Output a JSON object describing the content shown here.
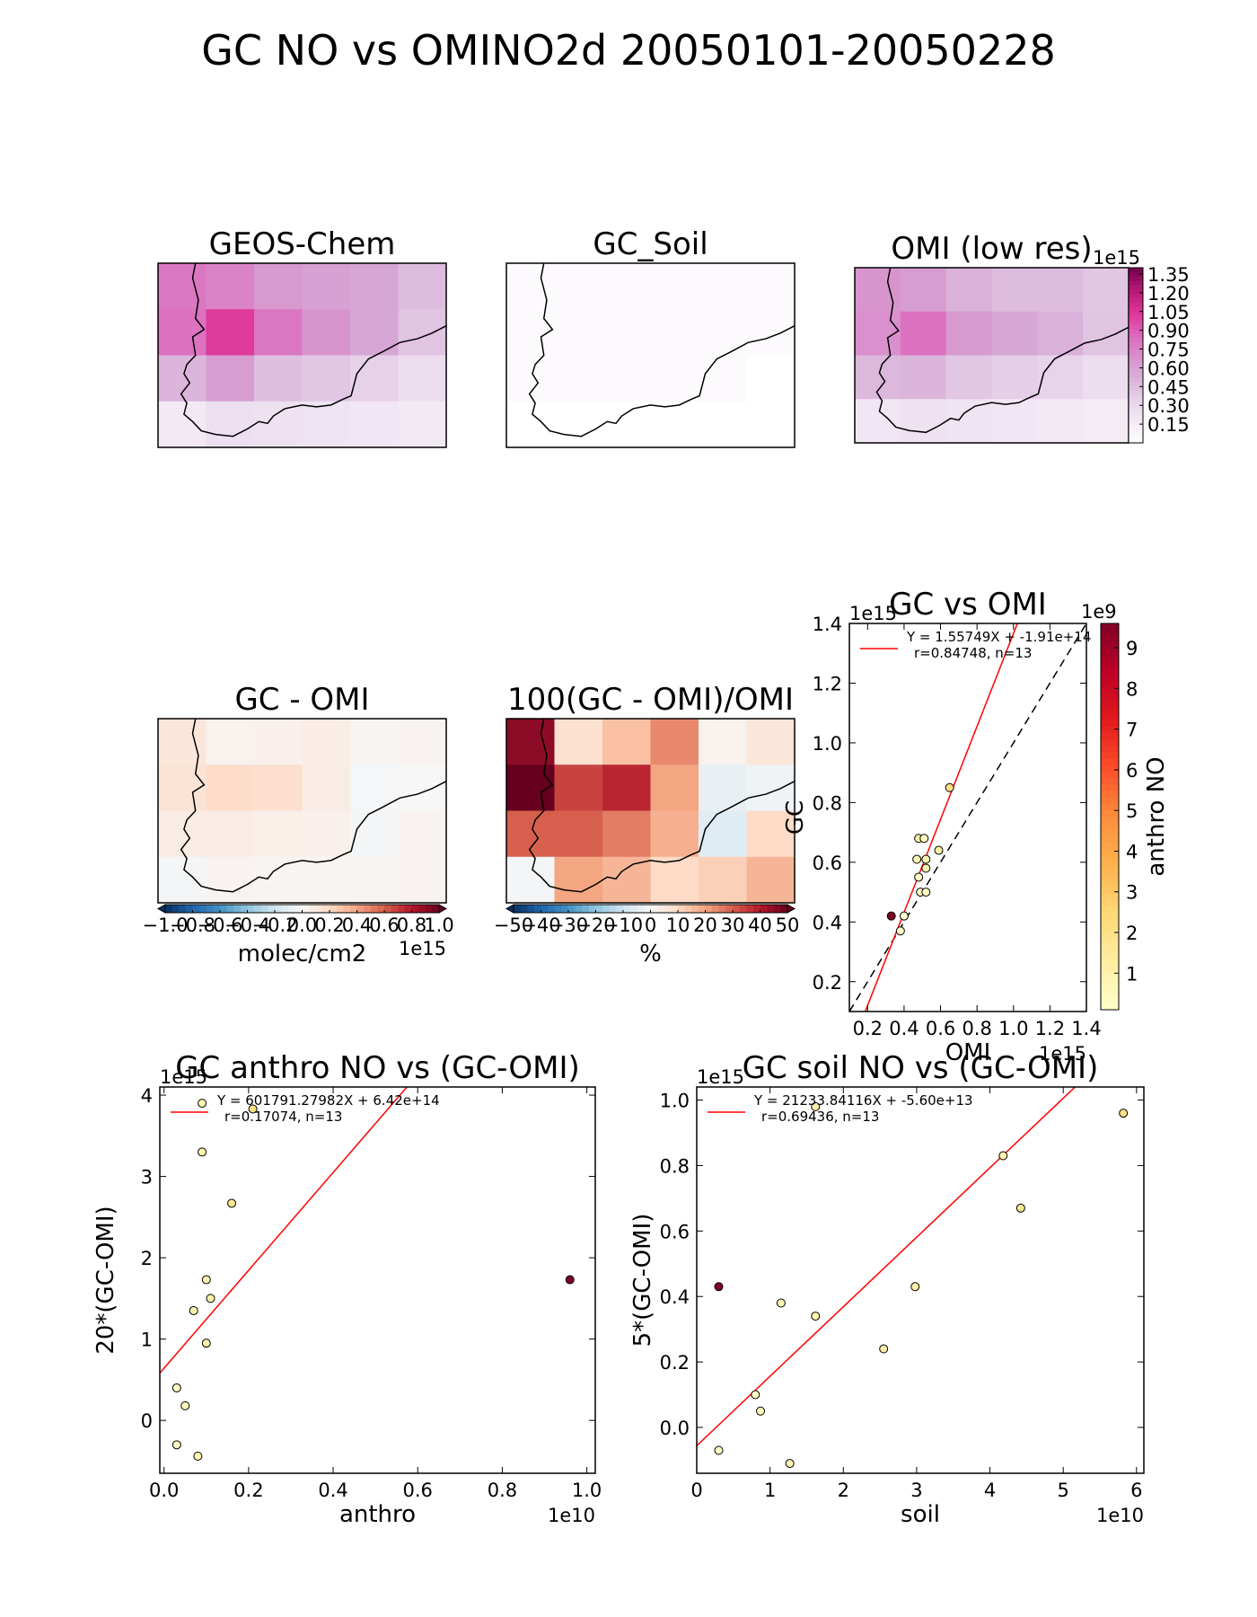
{
  "figure": {
    "title": "GC NO vs OMINO2d 20050101-20050228"
  },
  "maps": [
    {
      "title": "GEOS-Chem",
      "colormap": "RdPu",
      "vmin": 0,
      "vmax": 1.4,
      "grid": [
        [
          0.8,
          0.74,
          0.64,
          0.6,
          0.58,
          0.46
        ],
        [
          0.82,
          1.02,
          0.8,
          0.66,
          0.58,
          0.42
        ],
        [
          0.5,
          0.62,
          0.44,
          0.4,
          0.34,
          0.27
        ],
        [
          0.18,
          0.26,
          0.24,
          0.22,
          0.2,
          0.18
        ]
      ]
    },
    {
      "title": "GC_Soil",
      "colormap": "RdPu",
      "vmin": 0,
      "vmax": 1.4,
      "grid": [
        [
          0.04,
          0.04,
          0.04,
          0.04,
          0.04,
          0.04
        ],
        [
          0.04,
          0.04,
          0.04,
          0.04,
          0.04,
          0.04
        ],
        [
          0.04,
          0.04,
          0.04,
          0.04,
          0.04,
          null
        ],
        [
          null,
          null,
          null,
          null,
          null,
          null
        ]
      ]
    },
    {
      "title": "OMI (low res)",
      "colormap": "RdPu",
      "vmin": 0,
      "vmax": 1.4,
      "grid": [
        [
          0.66,
          0.62,
          0.52,
          0.46,
          0.46,
          0.4
        ],
        [
          0.68,
          0.82,
          0.64,
          0.58,
          0.52,
          0.42
        ],
        [
          0.48,
          0.5,
          0.4,
          0.36,
          0.33,
          0.27
        ],
        [
          0.2,
          0.24,
          0.22,
          0.2,
          0.18,
          0.16
        ]
      ],
      "colorbar": {
        "ticks": [
          "0.15",
          "0.30",
          "0.45",
          "0.60",
          "0.75",
          "0.90",
          "1.05",
          "1.20",
          "1.35"
        ],
        "offset": "1e15"
      }
    },
    {
      "title": "GC - OMI",
      "colormap": "RdBu_r",
      "vmin": -1.0,
      "vmax": 1.0,
      "grid": [
        [
          0.12,
          0.04,
          0.05,
          0.07,
          0.02,
          0.03
        ],
        [
          0.14,
          0.19,
          0.17,
          0.08,
          -0.01,
          0.0
        ],
        [
          0.08,
          0.08,
          0.06,
          0.05,
          -0.02,
          0.03
        ],
        [
          -0.02,
          0.03,
          0.02,
          0.02,
          0.02,
          0.03
        ]
      ],
      "colorbar": {
        "ticks": [
          "−1.0",
          "−0.8",
          "−0.6",
          "−0.4",
          "−0.2",
          "0.0",
          "0.2",
          "0.4",
          "0.6",
          "0.8",
          "1.0"
        ],
        "label": "molec/cm2",
        "offset": "1e15"
      }
    },
    {
      "title": "100(GC - OMI)/OMI",
      "colormap": "RdBu_r",
      "vmin": -50,
      "vmax": 50,
      "grid": [
        [
          45,
          8,
          15,
          24,
          2,
          6
        ],
        [
          52,
          34,
          38,
          20,
          -4,
          -2
        ],
        [
          30,
          30,
          26,
          18,
          -6,
          10
        ],
        [
          -1,
          20,
          17,
          10,
          12,
          17
        ]
      ],
      "colorbar": {
        "ticks": [
          "−50",
          "−40",
          "−30",
          "−20",
          "−10",
          "0",
          "10",
          "20",
          "30",
          "40",
          "50"
        ],
        "label": "%"
      }
    }
  ],
  "chart_data": [
    {
      "type": "scatter",
      "title": "GC vs OMI",
      "xlabel": "OMI",
      "ylabel": "GC",
      "xlim": [
        0.1,
        1.4
      ],
      "ylim": [
        0.1,
        1.4
      ],
      "xticks": [
        0.2,
        0.4,
        0.6,
        0.8,
        1.0,
        1.2,
        1.4
      ],
      "yticks": [
        0.2,
        0.4,
        0.6,
        0.8,
        1.0,
        1.2,
        1.4
      ],
      "x_offset": "1e15",
      "y_offset": "1e15",
      "points": [
        {
          "x": 0.33,
          "y": 0.42,
          "c": 9.6
        },
        {
          "x": 0.38,
          "y": 0.37,
          "c": 0.3
        },
        {
          "x": 0.4,
          "y": 0.42,
          "c": 0.1
        },
        {
          "x": 0.47,
          "y": 0.61,
          "c": 0.7
        },
        {
          "x": 0.48,
          "y": 0.55,
          "c": 0.2
        },
        {
          "x": 0.48,
          "y": 0.68,
          "c": 0.9
        },
        {
          "x": 0.49,
          "y": 0.5,
          "c": 0.3
        },
        {
          "x": 0.51,
          "y": 0.68,
          "c": 0.4
        },
        {
          "x": 0.52,
          "y": 0.58,
          "c": 1.0
        },
        {
          "x": 0.52,
          "y": 0.61,
          "c": 0.8
        },
        {
          "x": 0.52,
          "y": 0.5,
          "c": 0.4
        },
        {
          "x": 0.59,
          "y": 0.64,
          "c": 1.1
        },
        {
          "x": 0.65,
          "y": 0.85,
          "c": 2.1
        }
      ],
      "fit_line": {
        "slope": 1.55749,
        "intercept": -0.191
      },
      "one_to_one": true,
      "legend": {
        "line1": "Y = 1.55749X + -1.91e+14",
        "line2": "r=0.84748, n=13"
      },
      "colorbar": {
        "label": "anthro NO",
        "offset": "1e9",
        "vmin": 0.1,
        "vmax": 9.6,
        "ticks": [
          "1",
          "2",
          "3",
          "4",
          "5",
          "6",
          "7",
          "8",
          "9"
        ]
      }
    },
    {
      "type": "scatter",
      "title": "GC anthro NO vs (GC-OMI)",
      "xlabel": "anthro",
      "ylabel": "20*(GC-OMI)",
      "xlim": [
        -0.01,
        1.02
      ],
      "ylim": [
        -0.65,
        4.1
      ],
      "xticks": [
        0.0,
        0.2,
        0.4,
        0.6,
        0.8,
        1.0
      ],
      "yticks": [
        0,
        1,
        2,
        3,
        4
      ],
      "x_offset": "1e10",
      "y_offset": "1e15",
      "points": [
        {
          "x": 0.03,
          "y": 0.4,
          "c": 0.3
        },
        {
          "x": 0.03,
          "y": -0.3,
          "c": 0.3
        },
        {
          "x": 0.05,
          "y": 0.18,
          "c": 0.5
        },
        {
          "x": 0.07,
          "y": 1.35,
          "c": 0.7
        },
        {
          "x": 0.08,
          "y": -0.44,
          "c": 0.8
        },
        {
          "x": 0.09,
          "y": 3.9,
          "c": 0.9
        },
        {
          "x": 0.09,
          "y": 3.3,
          "c": 0.9
        },
        {
          "x": 0.1,
          "y": 0.95,
          "c": 1.0
        },
        {
          "x": 0.1,
          "y": 1.73,
          "c": 1.0
        },
        {
          "x": 0.11,
          "y": 1.5,
          "c": 1.1
        },
        {
          "x": 0.16,
          "y": 2.67,
          "c": 1.6
        },
        {
          "x": 0.21,
          "y": 3.83,
          "c": 2.1
        },
        {
          "x": 0.96,
          "y": 1.73,
          "c": 9.6
        }
      ],
      "fit_line": {
        "slope": 6.0179127982,
        "intercept": 0.642
      },
      "legend": {
        "line1": "Y = 601791.27982X + 6.42e+14",
        "line2": "r=0.17074, n=13"
      }
    },
    {
      "type": "scatter",
      "title": "GC soil NO vs (GC-OMI)",
      "xlabel": "soil",
      "ylabel": "5*(GC-OMI)",
      "xlim": [
        0,
        6.1
      ],
      "ylim": [
        -0.14,
        1.04
      ],
      "xticks": [
        0,
        1,
        2,
        3,
        4,
        5,
        6
      ],
      "yticks": [
        0.0,
        0.2,
        0.4,
        0.6,
        0.8,
        1.0
      ],
      "x_offset": "1e10",
      "y_offset": "1e15",
      "points": [
        {
          "x": 0.3,
          "y": 0.43,
          "c": 9.6
        },
        {
          "x": 0.3,
          "y": -0.07,
          "c": 0.3
        },
        {
          "x": 0.8,
          "y": 0.1,
          "c": 0.3
        },
        {
          "x": 0.87,
          "y": 0.05,
          "c": 0.5
        },
        {
          "x": 1.15,
          "y": 0.38,
          "c": 0.7
        },
        {
          "x": 1.27,
          "y": -0.11,
          "c": 0.8
        },
        {
          "x": 1.62,
          "y": 0.34,
          "c": 0.9
        },
        {
          "x": 1.62,
          "y": 0.98,
          "c": 0.9
        },
        {
          "x": 2.55,
          "y": 0.24,
          "c": 1.0
        },
        {
          "x": 2.98,
          "y": 0.43,
          "c": 1.0
        },
        {
          "x": 4.18,
          "y": 0.83,
          "c": 1.1
        },
        {
          "x": 4.42,
          "y": 0.67,
          "c": 1.6
        },
        {
          "x": 5.82,
          "y": 0.96,
          "c": 2.1
        }
      ],
      "fit_line": {
        "slope": 0.2123384116,
        "intercept": -0.056
      },
      "legend": {
        "line1": "Y = 21233.84116X + -5.60e+13",
        "line2": "r=0.69436, n=13"
      }
    }
  ]
}
